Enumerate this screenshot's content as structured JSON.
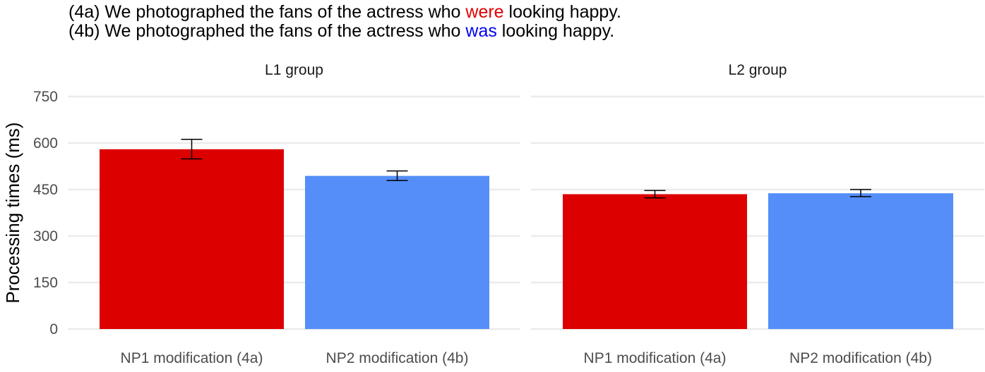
{
  "sentences": [
    {
      "prefix": "(4a) We photographed the fans of the actress who ",
      "highlight": "were",
      "suffix": " looking happy.",
      "highlight_color": "#e00000"
    },
    {
      "prefix": "(4b) We photographed the fans of the actress who ",
      "highlight": "was",
      "suffix": " looking happy.",
      "highlight_color": "#0000ee"
    }
  ],
  "chart_data": {
    "type": "bar",
    "ylabel": "Processing times (ms)",
    "ylim": [
      0,
      750
    ],
    "yticks": [
      0,
      150,
      300,
      450,
      600,
      750
    ],
    "grid": true,
    "error_bars": true,
    "colors": [
      "#dd0000",
      "#558ef8"
    ],
    "panels": [
      {
        "title": "L1 group",
        "categories": [
          "NP1 modification (4a)",
          "NP2 modification (4b)"
        ],
        "values": [
          580,
          494
        ],
        "error_low": [
          549,
          479
        ],
        "error_high": [
          612,
          510
        ]
      },
      {
        "title": "L2 group",
        "categories": [
          "NP1 modification (4a)",
          "NP2 modification (4b)"
        ],
        "values": [
          435,
          438
        ],
        "error_low": [
          423,
          427
        ],
        "error_high": [
          447,
          450
        ]
      }
    ]
  }
}
